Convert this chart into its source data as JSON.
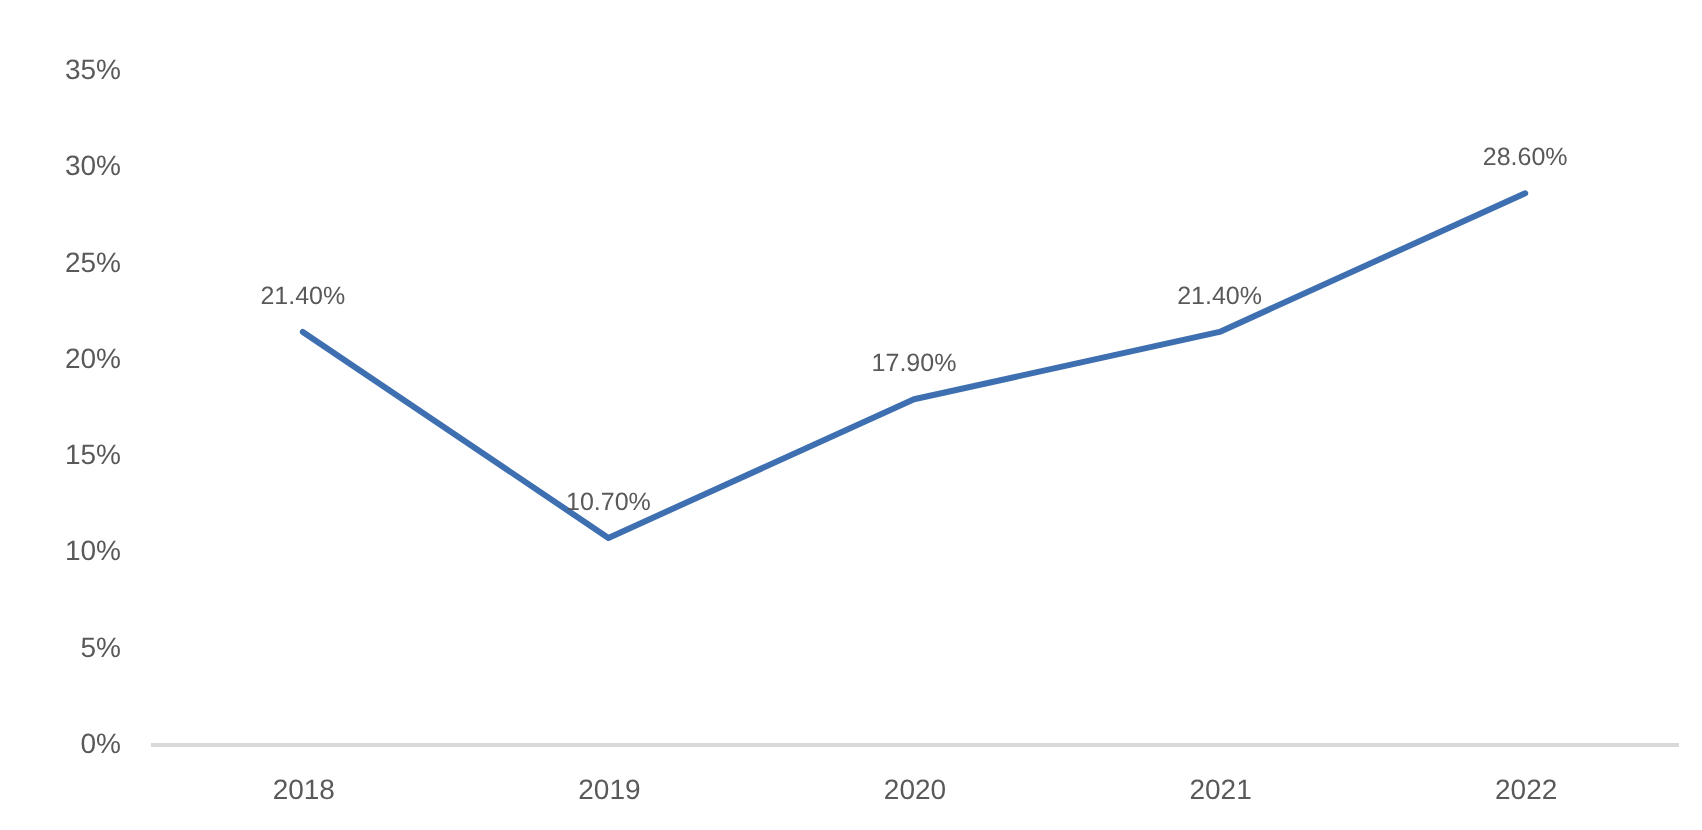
{
  "chart_data": {
    "type": "line",
    "categories": [
      "2018",
      "2019",
      "2020",
      "2021",
      "2022"
    ],
    "values": [
      21.4,
      10.7,
      17.9,
      21.4,
      28.6
    ],
    "value_labels": [
      "21.40%",
      "10.70%",
      "17.90%",
      "21.40%",
      "28.60%"
    ],
    "color": "#3e6fb0",
    "ylim": [
      0,
      35
    ],
    "yticks": [
      {
        "value": 0,
        "label": "0%"
      },
      {
        "value": 5,
        "label": "5%"
      },
      {
        "value": 10,
        "label": "10%"
      },
      {
        "value": 15,
        "label": "15%"
      },
      {
        "value": 20,
        "label": "20%"
      },
      {
        "value": 25,
        "label": "25%"
      },
      {
        "value": 30,
        "label": "30%"
      },
      {
        "value": 35,
        "label": "35%"
      }
    ],
    "grid": false
  }
}
